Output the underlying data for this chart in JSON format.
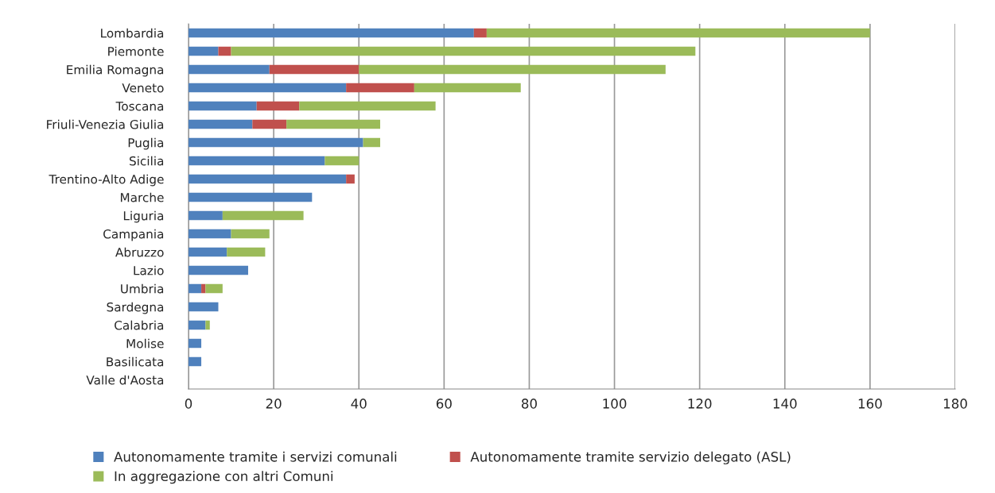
{
  "chart_data": {
    "type": "bar",
    "orientation": "horizontal",
    "stacked": true,
    "categories": [
      "Lombardia",
      "Piemonte",
      "Emilia Romagna",
      "Veneto",
      "Toscana",
      "Friuli-Venezia Giulia",
      "Puglia",
      "Sicilia",
      "Trentino-Alto Adige",
      "Marche",
      "Liguria",
      "Campania",
      "Abruzzo",
      "Lazio",
      "Umbria",
      "Sardegna",
      "Calabria",
      "Molise",
      "Basilicata",
      "Valle d'Aosta"
    ],
    "series": [
      {
        "name": "Autonomamente tramite i servizi comunali",
        "color": "#4f81bd",
        "values": [
          67,
          7,
          19,
          37,
          16,
          15,
          41,
          32,
          37,
          29,
          8,
          10,
          9,
          14,
          3,
          7,
          4,
          3,
          3,
          0
        ]
      },
      {
        "name": "Autonomamente tramite servizio delegato (ASL)",
        "color": "#c0504d",
        "values": [
          3,
          3,
          21,
          16,
          10,
          8,
          0,
          0,
          2,
          0,
          0,
          0,
          0,
          0,
          1,
          0,
          0,
          0,
          0,
          0
        ]
      },
      {
        "name": "In aggregazione con altri Comuni",
        "color": "#9bbb59",
        "values": [
          90,
          109,
          72,
          25,
          32,
          22,
          4,
          8,
          0,
          0,
          19,
          9,
          9,
          0,
          4,
          0,
          1,
          0,
          0,
          0
        ]
      }
    ],
    "xlim": [
      0,
      180
    ],
    "xticks": [
      0,
      20,
      40,
      60,
      80,
      100,
      120,
      140,
      160,
      180
    ],
    "grid": "x",
    "legend": "bottom"
  }
}
